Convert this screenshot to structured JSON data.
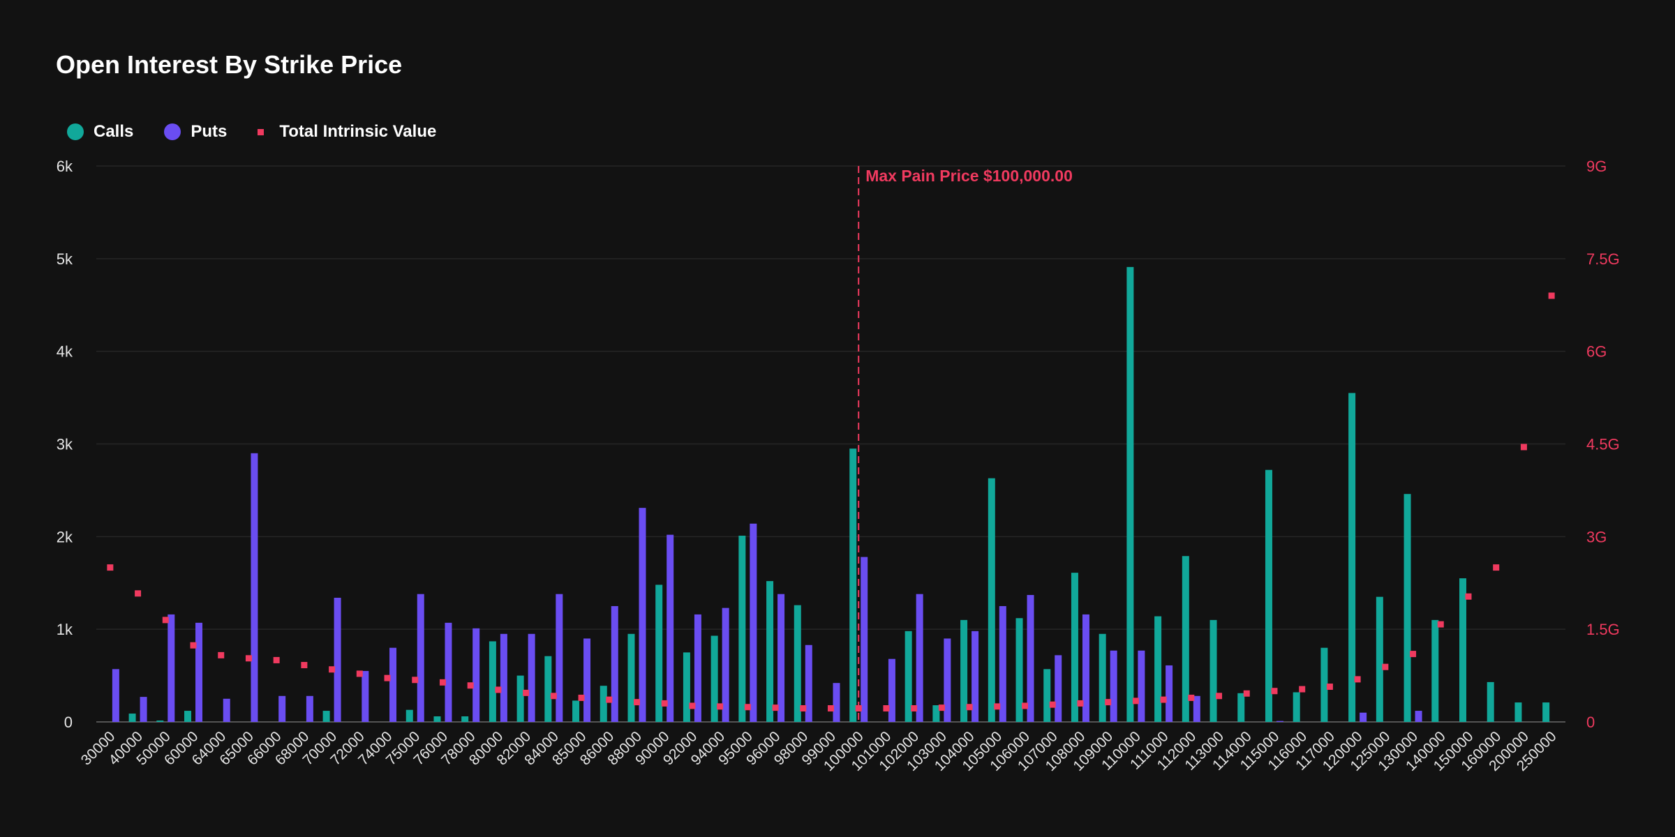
{
  "colors": {
    "calls": "#11a89a",
    "puts": "#6a4df2",
    "tiv": "#f03a5f",
    "grid": "#262626",
    "background": "#121212"
  },
  "chart_data": {
    "type": "bar",
    "title": "Open Interest By Strike Price",
    "legend": [
      "Calls",
      "Puts",
      "Total Intrinsic Value"
    ],
    "legend_position": "top-left",
    "categories": [
      "30000",
      "40000",
      "50000",
      "60000",
      "64000",
      "65000",
      "66000",
      "68000",
      "70000",
      "72000",
      "74000",
      "75000",
      "76000",
      "78000",
      "80000",
      "82000",
      "84000",
      "85000",
      "86000",
      "88000",
      "90000",
      "92000",
      "94000",
      "95000",
      "96000",
      "98000",
      "99000",
      "100000",
      "101000",
      "102000",
      "103000",
      "104000",
      "105000",
      "106000",
      "107000",
      "108000",
      "109000",
      "110000",
      "111000",
      "112000",
      "113000",
      "114000",
      "115000",
      "116000",
      "117000",
      "120000",
      "125000",
      "130000",
      "140000",
      "150000",
      "160000",
      "200000",
      "250000"
    ],
    "series": [
      {
        "name": "Calls",
        "axis": "left",
        "values": [
          0,
          90,
          15,
          120,
          0,
          0,
          0,
          0,
          120,
          0,
          0,
          130,
          60,
          60,
          870,
          500,
          710,
          230,
          390,
          950,
          1480,
          750,
          930,
          2010,
          1520,
          1260,
          0,
          2950,
          0,
          980,
          180,
          1100,
          2630,
          1120,
          570,
          1610,
          950,
          4910,
          1140,
          1790,
          1100,
          310,
          2720,
          320,
          800,
          3550,
          1350,
          2460,
          1100,
          1550,
          430,
          210,
          210
        ]
      },
      {
        "name": "Puts",
        "axis": "left",
        "values": [
          570,
          270,
          1160,
          1070,
          250,
          2900,
          280,
          280,
          1340,
          550,
          800,
          1380,
          1070,
          1010,
          950,
          950,
          1380,
          900,
          1250,
          2310,
          2020,
          1160,
          1230,
          2140,
          1380,
          830,
          420,
          1780,
          680,
          1380,
          900,
          980,
          1250,
          1370,
          720,
          1160,
          770,
          770,
          610,
          280,
          0,
          0,
          10,
          0,
          0,
          100,
          0,
          120,
          0,
          0,
          0,
          0,
          0
        ]
      },
      {
        "name": "Total Intrinsic Value",
        "axis": "right",
        "type": "scatter",
        "values": [
          2.5,
          2.08,
          1.65,
          1.24,
          1.08,
          1.03,
          1.0,
          0.92,
          0.85,
          0.78,
          0.71,
          0.68,
          0.64,
          0.59,
          0.52,
          0.47,
          0.42,
          0.39,
          0.36,
          0.32,
          0.3,
          0.26,
          0.25,
          0.24,
          0.23,
          0.22,
          0.22,
          0.22,
          0.22,
          0.22,
          0.23,
          0.24,
          0.25,
          0.26,
          0.28,
          0.3,
          0.32,
          0.34,
          0.36,
          0.39,
          0.42,
          0.46,
          0.5,
          0.53,
          0.57,
          0.69,
          0.89,
          1.1,
          1.58,
          2.03,
          2.5,
          4.45,
          6.9
        ]
      }
    ],
    "y_left": {
      "min": 0,
      "max": 6000,
      "ticks": [
        0,
        1000,
        2000,
        3000,
        4000,
        5000,
        6000
      ],
      "tick_labels": [
        "0",
        "1k",
        "2k",
        "3k",
        "4k",
        "5k",
        "6k"
      ]
    },
    "y_right": {
      "min": 0,
      "max": 9,
      "ticks": [
        0,
        1.5,
        3,
        4.5,
        6,
        7.5,
        9
      ],
      "tick_labels": [
        "0",
        "1.5G",
        "3G",
        "4.5G",
        "6G",
        "7.5G",
        "9G"
      ]
    },
    "annotation": {
      "label": "Max Pain Price $100,000.00",
      "category": "100000"
    },
    "grid": true
  }
}
